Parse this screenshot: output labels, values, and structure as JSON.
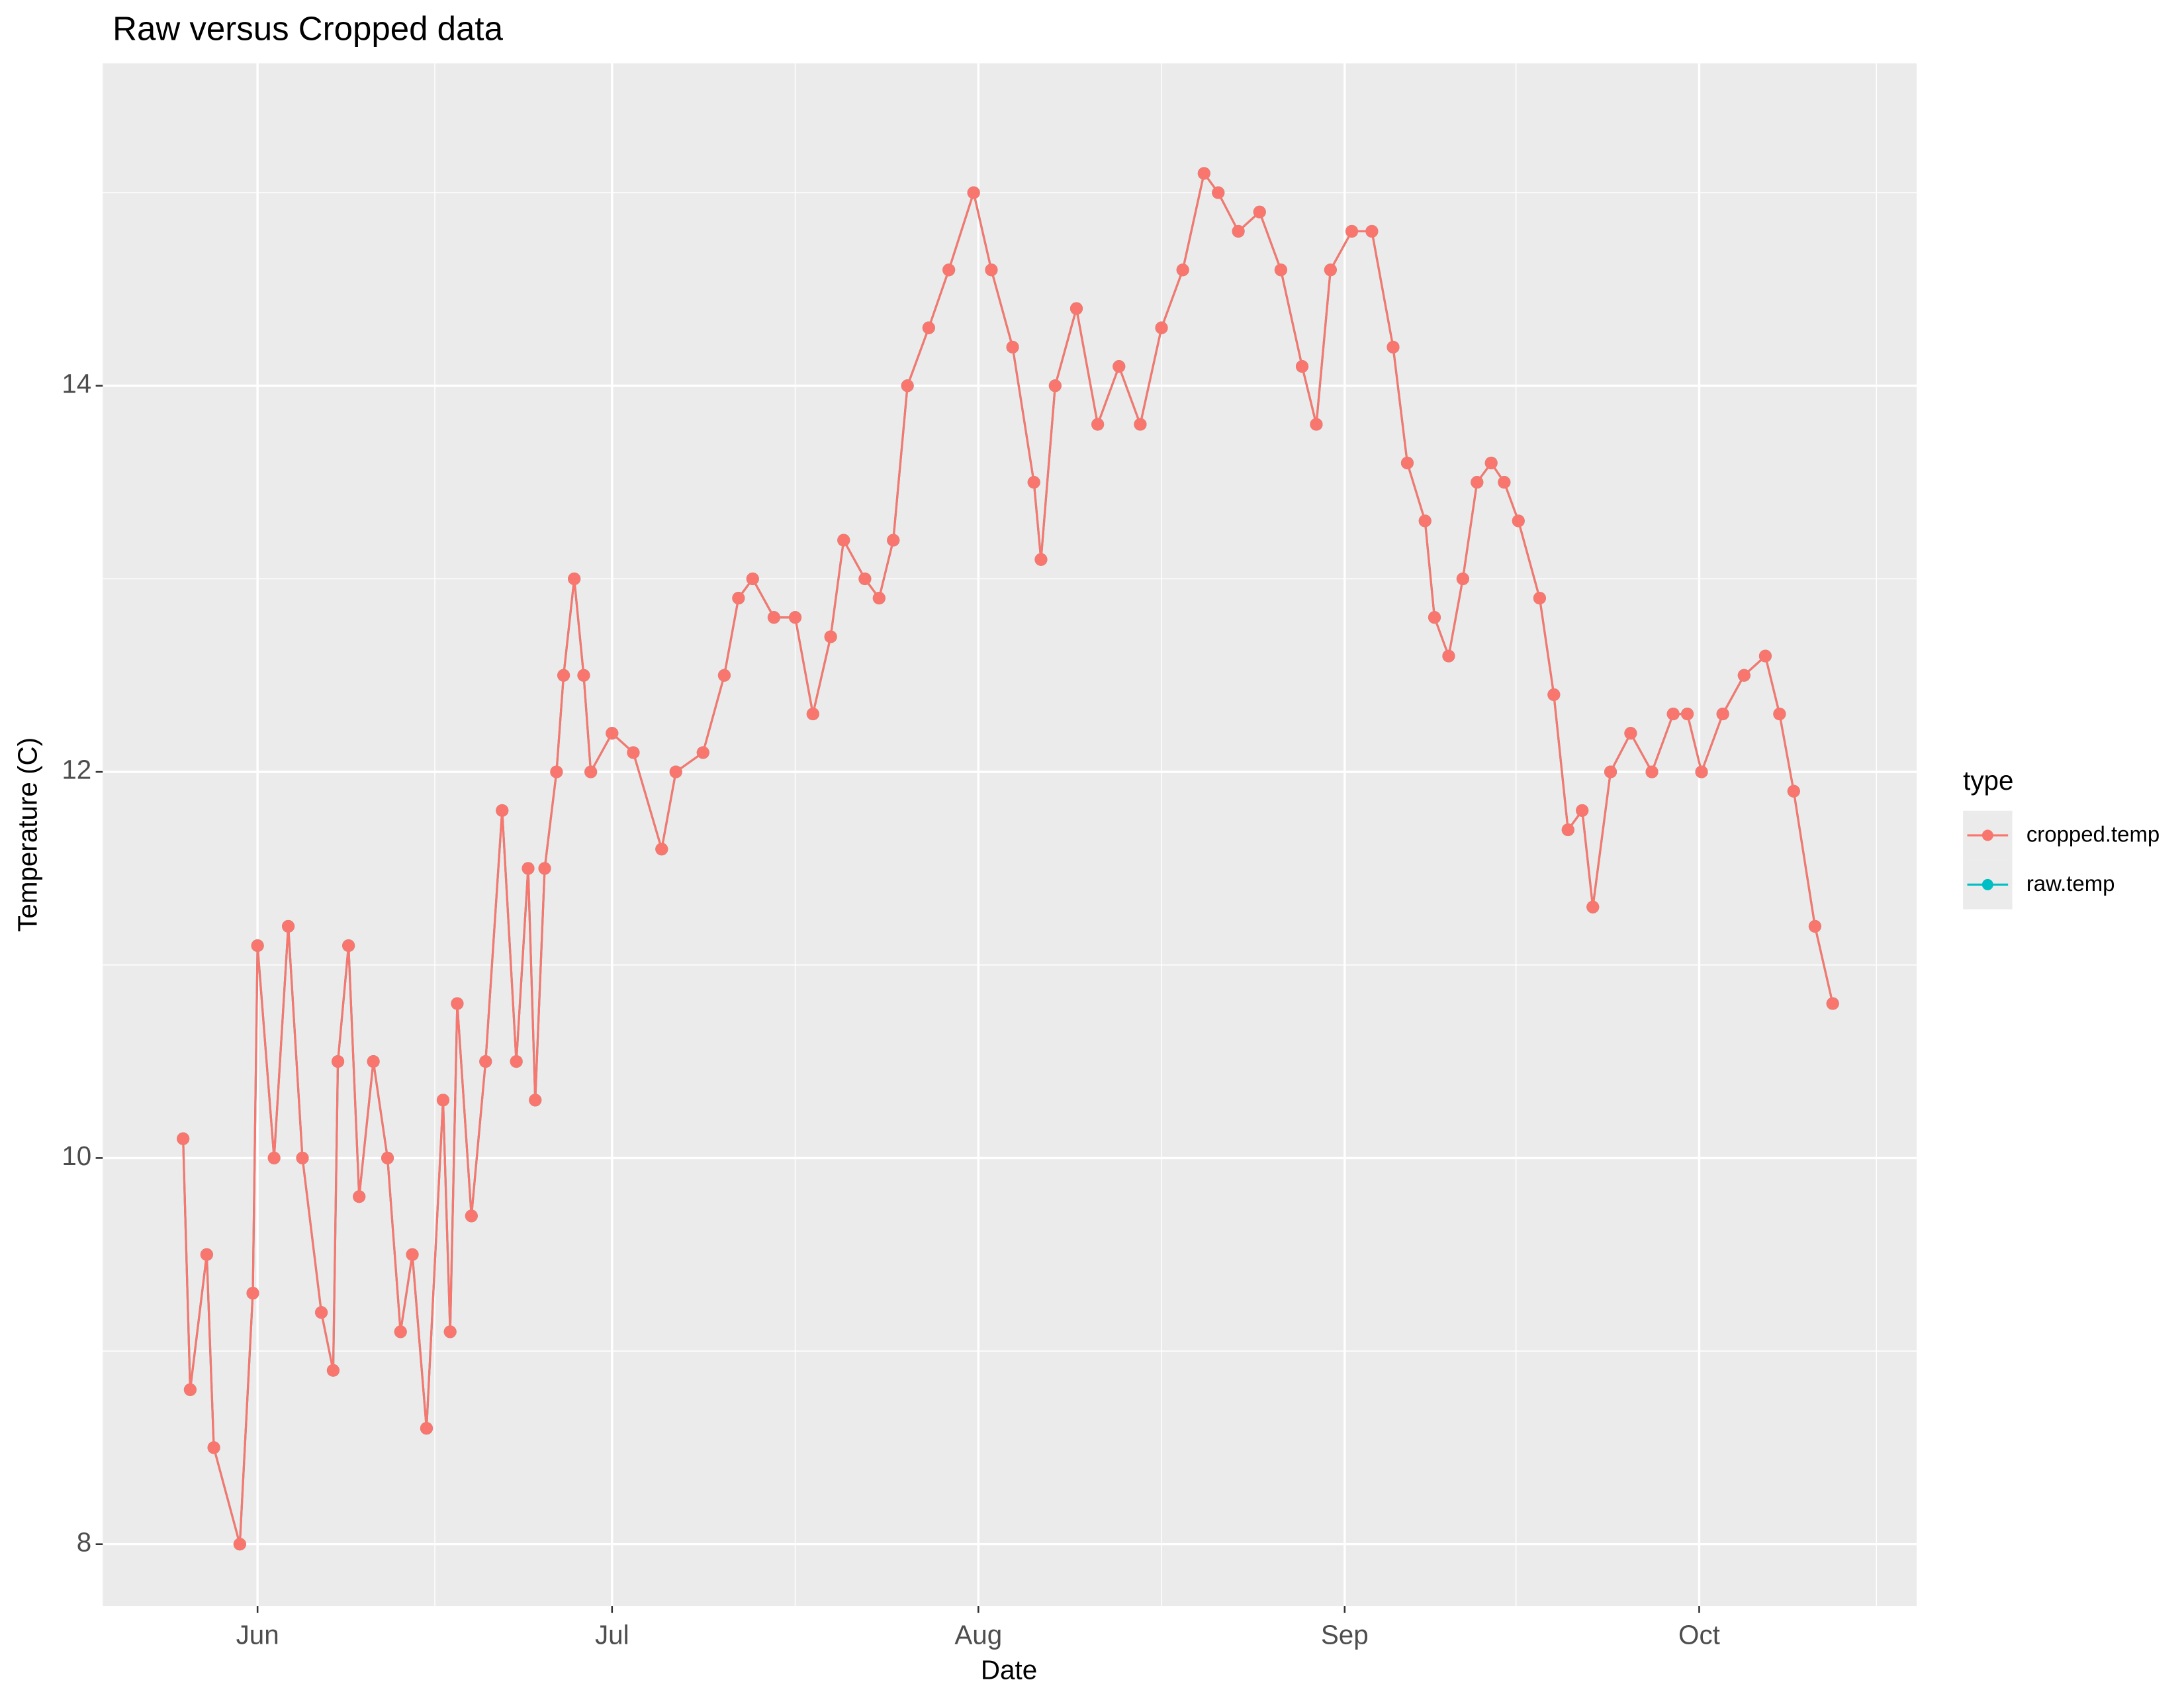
{
  "chart_data": {
    "type": "line",
    "title": "Raw versus Cropped data",
    "x_label": "Date",
    "y_label": "Temperature (C)",
    "legend_title": "type",
    "legend_position": "right",
    "grid": true,
    "markers": true,
    "xlim": [
      138.9,
      292.4
    ],
    "xticks": [
      {
        "value": 152,
        "label": "Jun"
      },
      {
        "value": 182,
        "label": "Jul"
      },
      {
        "value": 213,
        "label": "Aug"
      },
      {
        "value": 244,
        "label": "Sep"
      },
      {
        "value": 274,
        "label": "Oct"
      }
    ],
    "x_minor_grid": [
      167,
      197.5,
      228.5,
      258.5,
      289
    ],
    "ylim": [
      7.68,
      15.67
    ],
    "yticks": [
      8,
      10,
      12,
      14
    ],
    "y_minor_grid": [
      9,
      11,
      13,
      15
    ],
    "x": [
      145.7,
      146.3,
      147.7,
      148.3,
      150.5,
      151.6,
      152,
      153.4,
      154.6,
      155.8,
      157.4,
      158.4,
      158.8,
      159.7,
      160.6,
      161.8,
      163,
      164.1,
      165.1,
      166.3,
      167.7,
      168.3,
      168.9,
      170.1,
      171.3,
      172.7,
      173.9,
      174.9,
      175.5,
      176.3,
      177.3,
      177.9,
      178.8,
      179.6,
      180.2,
      182,
      183.8,
      186.2,
      187.4,
      189.7,
      191.5,
      192.7,
      193.9,
      195.7,
      197.5,
      199,
      200.5,
      201.6,
      203.4,
      204.6,
      205.8,
      207,
      208.8,
      210.5,
      212.6,
      214.1,
      215.9,
      217.7,
      218.3,
      219.5,
      221.3,
      223.1,
      224.9,
      226.7,
      228.5,
      230.3,
      232.1,
      233.3,
      235,
      236.8,
      238.6,
      240.4,
      241.6,
      242.8,
      244.6,
      246.3,
      248.1,
      249.3,
      250.8,
      251.6,
      252.8,
      254,
      255.2,
      256.4,
      257.5,
      258.7,
      260.5,
      261.7,
      262.9,
      264.1,
      265,
      266.5,
      268.2,
      270,
      271.8,
      273,
      274.2,
      276,
      277.8,
      279.6,
      280.8,
      282,
      283.8,
      285.3
    ],
    "series": [
      {
        "name": "raw.temp",
        "color": "#00BFC4",
        "values": [
          10.1,
          8.8,
          9.5,
          8.5,
          8.0,
          9.3,
          11.1,
          10.0,
          11.2,
          10.0,
          9.2,
          8.9,
          10.5,
          11.1,
          9.8,
          10.5,
          10.0,
          9.1,
          9.5,
          8.6,
          10.3,
          9.1,
          10.8,
          9.7,
          10.5,
          11.8,
          10.5,
          11.5,
          10.3,
          11.5,
          12.0,
          12.5,
          13.0,
          12.5,
          12.0,
          12.2,
          12.1,
          11.6,
          12.0,
          12.1,
          12.5,
          12.9,
          13.0,
          12.8,
          12.8,
          12.3,
          12.7,
          13.2,
          13.0,
          12.9,
          13.2,
          14.0,
          14.3,
          14.6,
          15.0,
          14.6,
          14.2,
          13.5,
          13.1,
          14.0,
          14.4,
          13.8,
          14.1,
          13.8,
          14.3,
          14.6,
          15.1,
          15.0,
          14.8,
          14.9,
          14.6,
          14.1,
          13.8,
          14.6,
          14.8,
          14.8,
          14.2,
          13.6,
          13.3,
          12.8,
          12.6,
          13.0,
          13.5,
          13.6,
          13.5,
          13.3,
          12.9,
          12.4,
          11.7,
          11.8,
          11.3,
          12.0,
          12.2,
          12.0,
          12.3,
          12.3,
          12.0,
          12.3,
          12.5,
          12.6,
          12.3,
          11.9,
          11.2,
          10.8
        ]
      },
      {
        "name": "cropped.temp",
        "color": "#F8766D",
        "values": [
          10.1,
          8.8,
          9.5,
          8.5,
          8.0,
          9.3,
          11.1,
          10.0,
          11.2,
          10.0,
          9.2,
          8.9,
          10.5,
          11.1,
          9.8,
          10.5,
          10.0,
          9.1,
          9.5,
          8.6,
          10.3,
          9.1,
          10.8,
          9.7,
          10.5,
          11.8,
          10.5,
          11.5,
          10.3,
          11.5,
          12.0,
          12.5,
          13.0,
          12.5,
          12.0,
          12.2,
          12.1,
          11.6,
          12.0,
          12.1,
          12.5,
          12.9,
          13.0,
          12.8,
          12.8,
          12.3,
          12.7,
          13.2,
          13.0,
          12.9,
          13.2,
          14.0,
          14.3,
          14.6,
          15.0,
          14.6,
          14.2,
          13.5,
          13.1,
          14.0,
          14.4,
          13.8,
          14.1,
          13.8,
          14.3,
          14.6,
          15.1,
          15.0,
          14.8,
          14.9,
          14.6,
          14.1,
          13.8,
          14.6,
          14.8,
          14.8,
          14.2,
          13.6,
          13.3,
          12.8,
          12.6,
          13.0,
          13.5,
          13.6,
          13.5,
          13.3,
          12.9,
          12.4,
          11.7,
          11.8,
          11.3,
          12.0,
          12.2,
          12.0,
          12.3,
          12.3,
          12.0,
          12.3,
          12.5,
          12.6,
          12.3,
          11.9,
          11.2,
          10.8
        ]
      }
    ]
  }
}
